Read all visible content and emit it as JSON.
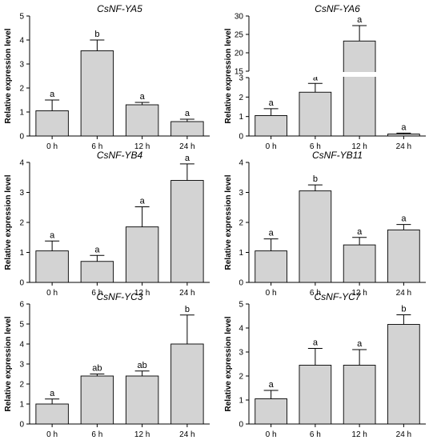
{
  "chart_data": [
    {
      "type": "bar",
      "title": "CsNF-YA5",
      "ylabel": "Relative expression level",
      "xlabel": "",
      "categories": [
        "0 h",
        "6 h",
        "12 h",
        "24 h"
      ],
      "values": [
        1.05,
        3.55,
        1.3,
        0.6
      ],
      "errors": [
        0.45,
        0.45,
        0.1,
        0.1
      ],
      "significance": [
        "a",
        "b",
        "a",
        "a"
      ],
      "ylim": [
        0,
        5
      ],
      "yticks": [
        0,
        1,
        2,
        3,
        4,
        5
      ],
      "bar_color": "#d3d3d3"
    },
    {
      "type": "bar",
      "title": "CsNF-YA6",
      "ylabel": "Relative expression level",
      "xlabel": "",
      "categories": [
        "0 h",
        "6 h",
        "12 h",
        "24 h"
      ],
      "values": [
        1.05,
        2.25,
        23.2,
        0.1
      ],
      "errors": [
        0.35,
        0.45,
        4.2,
        0.05
      ],
      "significance": [
        "a",
        "a",
        "a",
        "a"
      ],
      "ylim": [
        0,
        30
      ],
      "broken_axis": {
        "lower": [
          0,
          3
        ],
        "upper": [
          15,
          30
        ]
      },
      "yticks_lower": [
        0,
        1,
        2,
        3
      ],
      "yticks_upper": [
        15,
        20,
        25,
        30
      ],
      "bar_color": "#d3d3d3"
    },
    {
      "type": "bar",
      "title": "CsNF-YB4",
      "ylabel": "Relative expression level",
      "xlabel": "",
      "categories": [
        "0 h",
        "6 h",
        "12 h",
        "24 h"
      ],
      "values": [
        1.05,
        0.7,
        1.85,
        3.4
      ],
      "errors": [
        0.33,
        0.2,
        0.67,
        0.55
      ],
      "significance": [
        "a",
        "a",
        "a",
        "a"
      ],
      "ylim": [
        0,
        4
      ],
      "yticks": [
        0,
        1,
        2,
        3,
        4
      ],
      "bar_color": "#d3d3d3"
    },
    {
      "type": "bar",
      "title": "CsNF-YB11",
      "ylabel": "Relative expression level",
      "xlabel": "",
      "categories": [
        "0 h",
        "6 h",
        "12 h",
        "24 h"
      ],
      "values": [
        1.05,
        3.05,
        1.25,
        1.75
      ],
      "errors": [
        0.4,
        0.2,
        0.25,
        0.18
      ],
      "significance": [
        "a",
        "b",
        "a",
        "a"
      ],
      "ylim": [
        0,
        4
      ],
      "yticks": [
        0,
        1,
        2,
        3,
        4
      ],
      "bar_color": "#d3d3d3"
    },
    {
      "type": "bar",
      "title": "CsNF-YC3",
      "ylabel": "Relative expression level",
      "xlabel": "",
      "categories": [
        "0 h",
        "6 h",
        "12 h",
        "24 h"
      ],
      "values": [
        1.0,
        2.4,
        2.4,
        4.0
      ],
      "errors": [
        0.25,
        0.1,
        0.25,
        1.45
      ],
      "significance": [
        "a",
        "ab",
        "ab",
        "b"
      ],
      "ylim": [
        0,
        6
      ],
      "yticks": [
        0,
        1,
        2,
        3,
        4,
        5,
        6
      ],
      "bar_color": "#d3d3d3"
    },
    {
      "type": "bar",
      "title": "CsNF-YC7",
      "ylabel": "Relative expression level",
      "xlabel": "",
      "categories": [
        "0 h",
        "6 h",
        "12 h",
        "24 h"
      ],
      "values": [
        1.05,
        2.45,
        2.45,
        4.15
      ],
      "errors": [
        0.35,
        0.7,
        0.65,
        0.4
      ],
      "significance": [
        "a",
        "a",
        "a",
        "b"
      ],
      "ylim": [
        0,
        5
      ],
      "yticks": [
        0,
        1,
        2,
        3,
        4,
        5
      ],
      "bar_color": "#d3d3d3"
    }
  ]
}
